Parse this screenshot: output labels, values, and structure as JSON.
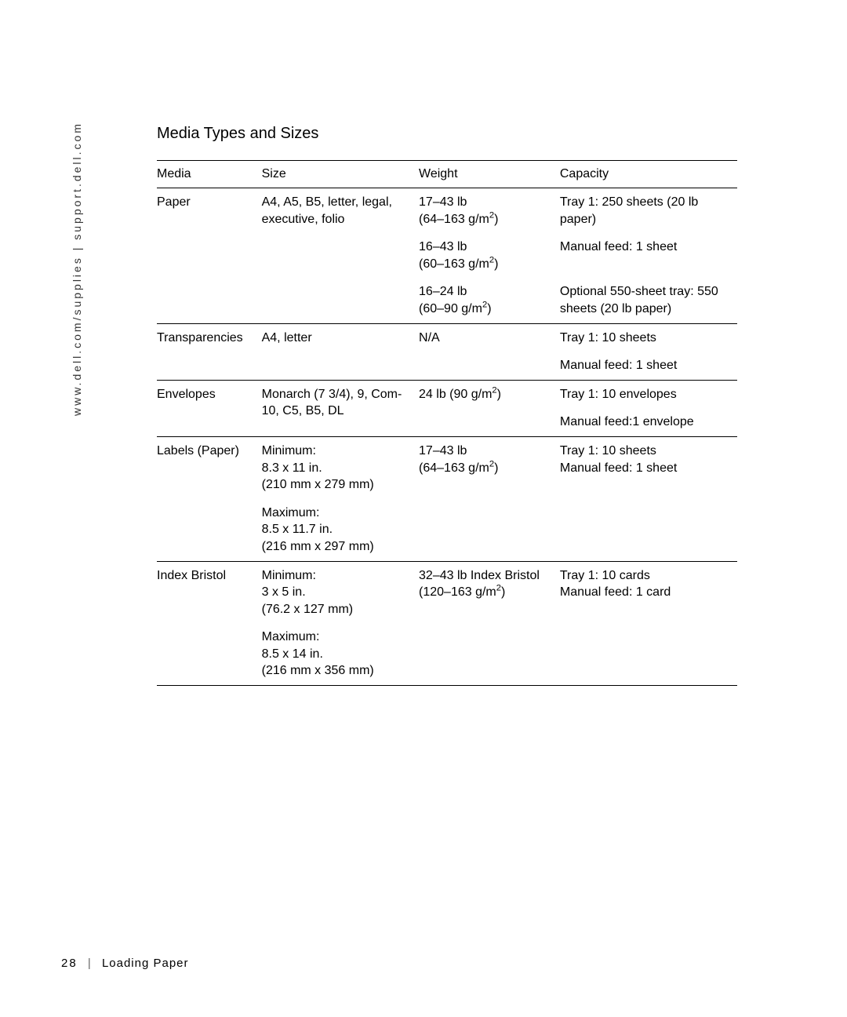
{
  "side_label": "www.dell.com/supplies | support.dell.com",
  "section_title": "Media Types and Sizes",
  "headers": {
    "media": "Media",
    "size": "Size",
    "weight": "Weight",
    "capacity": "Capacity"
  },
  "rows": {
    "paper": {
      "media": "Paper",
      "size": "A4, A5, B5, letter, legal, executive, folio",
      "w1a": "17–43 lb",
      "w1b": "(64–163 g/m",
      "w1c": ")",
      "c1": "Tray 1: 250 sheets (20 lb paper)",
      "w2a": "16–43 lb",
      "w2b": "(60–163 g/m",
      "w2c": ")",
      "c2": "Manual feed: 1 sheet",
      "w3a": "16–24 lb",
      "w3b": "(60–90 g/m",
      "w3c": ")",
      "c3": "Optional 550-sheet tray: 550 sheets (20 lb paper)"
    },
    "trans": {
      "media": "Transparencies",
      "size": "A4, letter",
      "weight": "N/A",
      "c1": "Tray 1: 10 sheets",
      "c2": "Manual feed: 1 sheet"
    },
    "env": {
      "media": "Envelopes",
      "size": "Monarch (7 3/4), 9, Com-10, C5, B5, DL",
      "wa": "24 lb (90 g/m",
      "wc": ")",
      "c1": "Tray 1: 10 envelopes",
      "c2": "Manual feed:1 envelope"
    },
    "labels": {
      "media": "Labels (Paper)",
      "s1": "Minimum:",
      "s2": "8.3 x 11 in.",
      "s3": "(210 mm x 279 mm)",
      "s4": "Maximum:",
      "s5": "8.5 x 11.7 in.",
      "s6": "(216 mm x 297 mm)",
      "wa": "17–43 lb",
      "wb": "(64–163 g/m",
      "wc": ")",
      "c1": "Tray 1: 10 sheets",
      "c2": "Manual feed: 1 sheet"
    },
    "bristol": {
      "media": "Index Bristol",
      "s1": "Minimum:",
      "s2": "3 x 5 in.",
      "s3": "(76.2 x 127 mm)",
      "s4": "Maximum:",
      "s5": "8.5 x 14 in.",
      "s6": "(216 mm x 356 mm)",
      "wa": "32–43 lb Index Bristol",
      "wb": "(120–163 g/m",
      "wc": ")",
      "c1": "Tray 1: 10 cards",
      "c2": "Manual feed: 1 card"
    }
  },
  "footer": {
    "page_number": "28",
    "section": "Loading Paper"
  }
}
